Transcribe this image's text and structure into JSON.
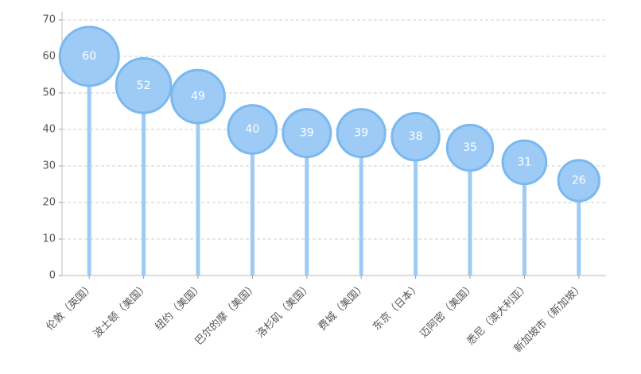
{
  "chart_data": {
    "type": "lollipop",
    "categories": [
      "伦敦（英国）",
      "波士顿（美国）",
      "纽约（美国）",
      "巴尔的摩（美国）",
      "洛杉矶（美国）",
      "费城（美国）",
      "东京（日本）",
      "迈阿密（美国）",
      "悉尼（澳大利亚）",
      "新加坡市（新加坡）"
    ],
    "values": [
      60,
      52,
      49,
      40,
      39,
      39,
      38,
      35,
      31,
      26
    ],
    "color": "#9ecbf5",
    "stroke": "#7ab8f0",
    "ylim": [
      0,
      70
    ],
    "yticks": [
      0,
      10,
      20,
      30,
      40,
      50,
      60,
      70
    ],
    "grid": true
  }
}
